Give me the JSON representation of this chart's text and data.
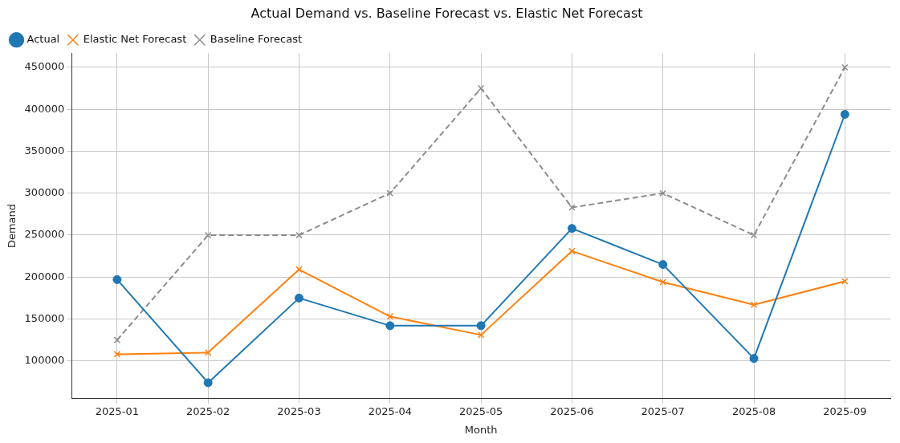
{
  "chart_data": {
    "type": "line",
    "title": "Actual Demand vs. Baseline Forecast vs. Elastic Net Forecast",
    "xlabel": "Month",
    "ylabel": "Demand",
    "categories": [
      "2025-01",
      "2025-02",
      "2025-03",
      "2025-04",
      "2025-05",
      "2025-06",
      "2025-07",
      "2025-08",
      "2025-09"
    ],
    "series": [
      {
        "name": "Actual",
        "color": "#1f77b4",
        "marker": "circle",
        "line_style": "solid",
        "values": [
          197000,
          74000,
          175000,
          142000,
          142000,
          258000,
          215000,
          103000,
          394000
        ]
      },
      {
        "name": "Elastic Net Forecast",
        "color": "#ff7f0e",
        "marker": "cross",
        "line_style": "solid",
        "values": [
          108000,
          110000,
          209000,
          153000,
          131000,
          231000,
          194000,
          167000,
          195000
        ]
      },
      {
        "name": "Baseline Forecast",
        "color": "#8c8c8c",
        "marker": "cross",
        "line_style": "dashed",
        "values": [
          125000,
          250000,
          250000,
          300000,
          425000,
          283000,
          300000,
          250000,
          450000
        ]
      }
    ],
    "ylim": [
      55000,
      467000
    ],
    "yticks": [
      100000,
      150000,
      200000,
      250000,
      300000,
      350000,
      400000,
      450000
    ],
    "grid": true,
    "legend": "top left"
  }
}
